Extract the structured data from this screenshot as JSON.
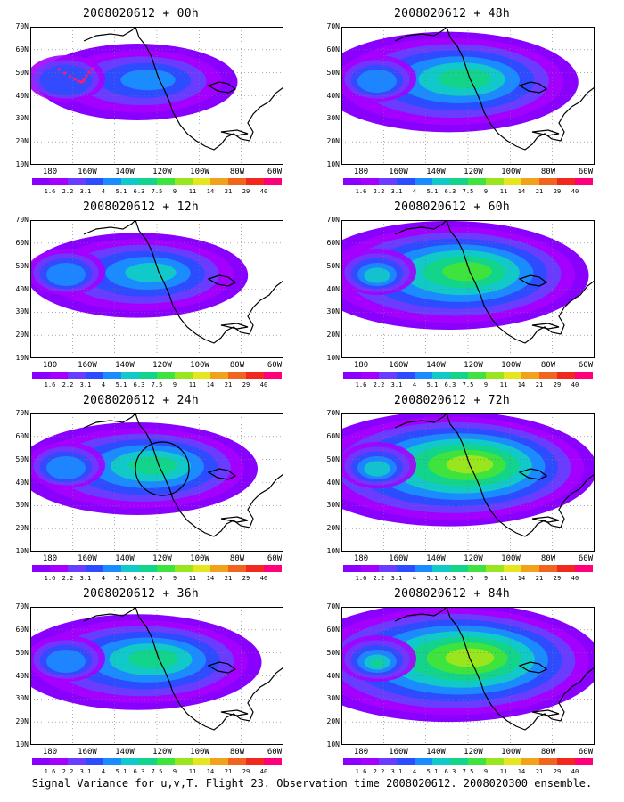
{
  "panels": [
    {
      "title": "2008020612 + 00h",
      "level": 0.25,
      "circle": false,
      "dots": true
    },
    {
      "title": "2008020612 + 48h",
      "level": 0.62,
      "circle": false,
      "dots": false
    },
    {
      "title": "2008020612 + 12h",
      "level": 0.38,
      "circle": false,
      "dots": false
    },
    {
      "title": "2008020612 + 60h",
      "level": 0.75,
      "circle": false,
      "dots": false
    },
    {
      "title": "2008020612 + 24h",
      "level": 0.5,
      "circle": true,
      "dots": false
    },
    {
      "title": "2008020612 + 72h",
      "level": 0.85,
      "circle": false,
      "dots": false
    },
    {
      "title": "2008020612 + 36h",
      "level": 0.55,
      "circle": false,
      "dots": false
    },
    {
      "title": "2008020612 + 84h",
      "level": 0.92,
      "circle": false,
      "dots": false
    }
  ],
  "lat_labels": [
    "70N",
    "60N",
    "50N",
    "40N",
    "30N",
    "20N",
    "10N"
  ],
  "lon_labels": [
    "180",
    "160W",
    "140W",
    "120W",
    "100W",
    "80W",
    "60W"
  ],
  "colorbar": {
    "labels": [
      "1.6",
      "2.2",
      "3.1",
      "4",
      "5.1",
      "6.3",
      "7.5",
      "9",
      "11",
      "14",
      "21",
      "29",
      "40"
    ],
    "colors": [
      "#8a00ff",
      "#a400ff",
      "#6a3cff",
      "#2e4cff",
      "#1a8cff",
      "#12c9c9",
      "#12d48a",
      "#3ee33e",
      "#9ae61e",
      "#e6e61e",
      "#f0a21a",
      "#f0641e",
      "#f0281e",
      "#ff007a"
    ]
  },
  "caption": "Signal Variance for u,v,T. Flight 23. Observation time 2008020612. 2008020300 ensemble."
}
